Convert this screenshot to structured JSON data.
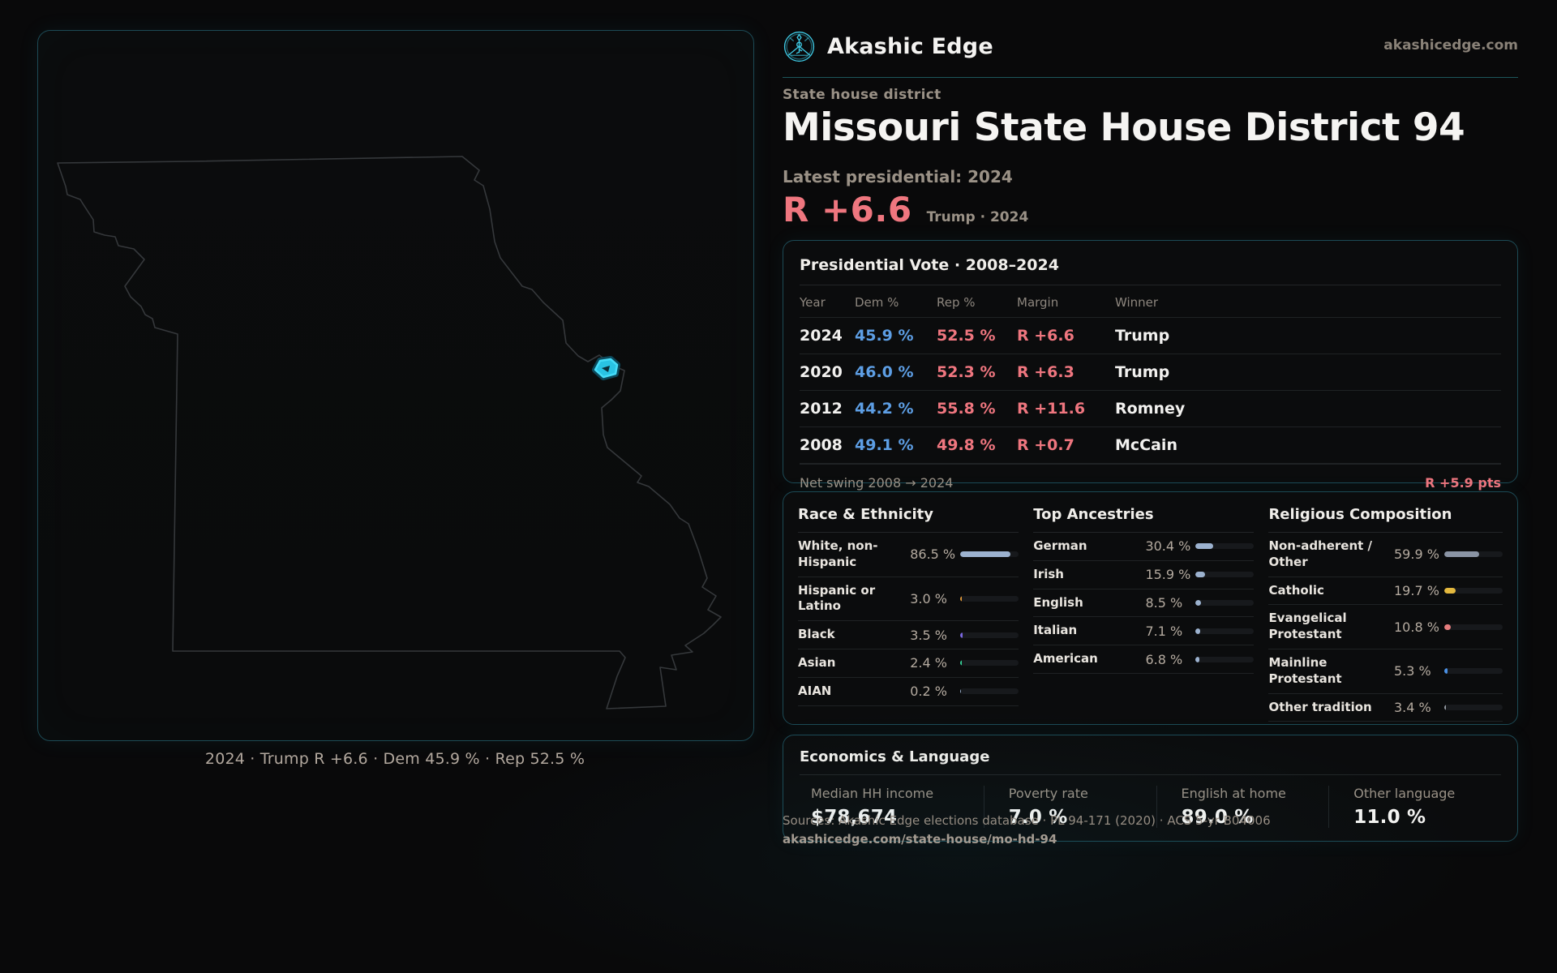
{
  "brand": {
    "name": "Akashic Edge",
    "domain": "akashicedge.com"
  },
  "page": {
    "eyebrow": "State house district",
    "title": "Missouri State House District 94",
    "latest_label": "Latest presidential: 2024",
    "margin_value": "R +6.6",
    "margin_context": "Trump · 2024"
  },
  "map": {
    "caption": "2024 · Trump R +6.6 · Dem 45.9 % · Rep 52.5 %"
  },
  "presidential_table": {
    "title": "Presidential Vote · 2008–2024",
    "columns": [
      "Year",
      "Dem %",
      "Rep %",
      "Margin",
      "Winner"
    ],
    "rows": [
      {
        "year": "2024",
        "dem": "45.9 %",
        "rep": "52.5 %",
        "margin": "R +6.6",
        "winner": "Trump"
      },
      {
        "year": "2020",
        "dem": "46.0 %",
        "rep": "52.3 %",
        "margin": "R +6.3",
        "winner": "Trump"
      },
      {
        "year": "2012",
        "dem": "44.2 %",
        "rep": "55.8 %",
        "margin": "R +11.6",
        "winner": "Romney"
      },
      {
        "year": "2008",
        "dem": "49.1 %",
        "rep": "49.8 %",
        "margin": "R +0.7",
        "winner": "McCain"
      }
    ],
    "footer_label": "Net swing 2008 → 2024",
    "footer_value": "R +5.9 pts"
  },
  "demo_panels": [
    {
      "title": "Race & Ethnicity",
      "rows": [
        {
          "label": "White, non-Hispanic",
          "value": "86.5 %",
          "pct": 86.5,
          "color": "#9cb2cf"
        },
        {
          "label": "Hispanic or Latino",
          "value": "3.0 %",
          "pct": 3.0,
          "color": "#e0993a"
        },
        {
          "label": "Black",
          "value": "3.5 %",
          "pct": 3.5,
          "color": "#7b68e0"
        },
        {
          "label": "Asian",
          "value": "2.4 %",
          "pct": 2.4,
          "color": "#35cf96"
        },
        {
          "label": "AIAN",
          "value": "0.2 %",
          "pct": 0.2,
          "color": "#9cb2cf"
        }
      ]
    },
    {
      "title": "Top Ancestries",
      "rows": [
        {
          "label": "German",
          "value": "30.4 %",
          "pct": 30.4,
          "color": "#9cb2cf"
        },
        {
          "label": "Irish",
          "value": "15.9 %",
          "pct": 15.9,
          "color": "#9cb2cf"
        },
        {
          "label": "English",
          "value": "8.5 %",
          "pct": 8.5,
          "color": "#9cb2cf"
        },
        {
          "label": "Italian",
          "value": "7.1 %",
          "pct": 7.1,
          "color": "#9cb2cf"
        },
        {
          "label": "American",
          "value": "6.8 %",
          "pct": 6.8,
          "color": "#9cb2cf"
        }
      ]
    },
    {
      "title": "Religious Composition",
      "rows": [
        {
          "label": "Non-adherent / Other",
          "value": "59.9 %",
          "pct": 59.9,
          "color": "#8a94a4"
        },
        {
          "label": "Catholic",
          "value": "19.7 %",
          "pct": 19.7,
          "color": "#e3b83e"
        },
        {
          "label": "Evangelical Protestant",
          "value": "10.8 %",
          "pct": 10.8,
          "color": "#e57d7d"
        },
        {
          "label": "Mainline Protestant",
          "value": "5.3 %",
          "pct": 5.3,
          "color": "#4a90e4"
        },
        {
          "label": "Other tradition",
          "value": "3.4 %",
          "pct": 3.4,
          "color": "#969ca4"
        }
      ]
    }
  ],
  "economics": {
    "title": "Economics & Language",
    "stats": [
      {
        "label": "Median HH income",
        "value": "$78,674"
      },
      {
        "label": "Poverty rate",
        "value": "7.0 %"
      },
      {
        "label": "English at home",
        "value": "89.0 %"
      },
      {
        "label": "Other language",
        "value": "11.0 %"
      }
    ]
  },
  "sources": {
    "line1": "Sources: Akashic Edge elections database · PL 94-171 (2020) · ACS 5-yr B04006",
    "line2": "akashicedge.com/state-house/mo-hd-94"
  }
}
